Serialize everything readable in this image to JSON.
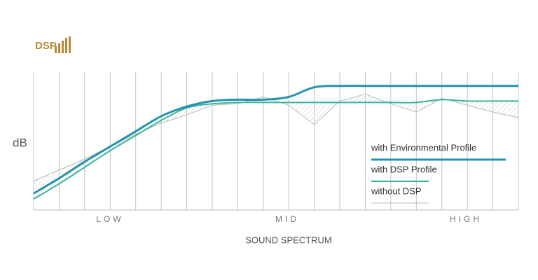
{
  "chart_data": {
    "type": "line",
    "logo": "DSP",
    "ylabel": "dB",
    "xlabel": "SOUND SPECTRUM",
    "regions": [
      "LOW",
      "MID",
      "HIGH"
    ],
    "x": [
      0,
      1,
      2,
      3,
      4,
      5,
      6,
      7,
      8,
      9,
      10,
      11,
      12,
      13,
      14,
      15,
      16,
      17,
      18,
      19
    ],
    "xlim": [
      0,
      19
    ],
    "xticks": [
      0,
      1,
      2,
      3,
      4,
      5,
      6,
      7,
      8,
      9,
      10,
      11,
      12,
      13,
      14,
      15,
      16,
      17,
      18,
      19
    ],
    "ylim": [
      0,
      100
    ],
    "grid": true,
    "legend": "lower right",
    "series": [
      {
        "name": "with Environmental Profile",
        "color": "#2592ad",
        "values": [
          12,
          23,
          35,
          46,
          57,
          68,
          75,
          79,
          80,
          80,
          82,
          89,
          90,
          90,
          90,
          90,
          90,
          90,
          90,
          90
        ]
      },
      {
        "name": "with DSP Profile",
        "color": "#3bb39b",
        "values": [
          8,
          19,
          31,
          43,
          54,
          65,
          74,
          77,
          78,
          78,
          78,
          78,
          78,
          78,
          78,
          78,
          80,
          79,
          79,
          79
        ]
      },
      {
        "name": "without DSP",
        "color": "#b8b8b8",
        "values": [
          21,
          29,
          37,
          46,
          55,
          63,
          69,
          76,
          77,
          82,
          76,
          62,
          79,
          84,
          77,
          71,
          81,
          76,
          71,
          67
        ]
      }
    ]
  }
}
